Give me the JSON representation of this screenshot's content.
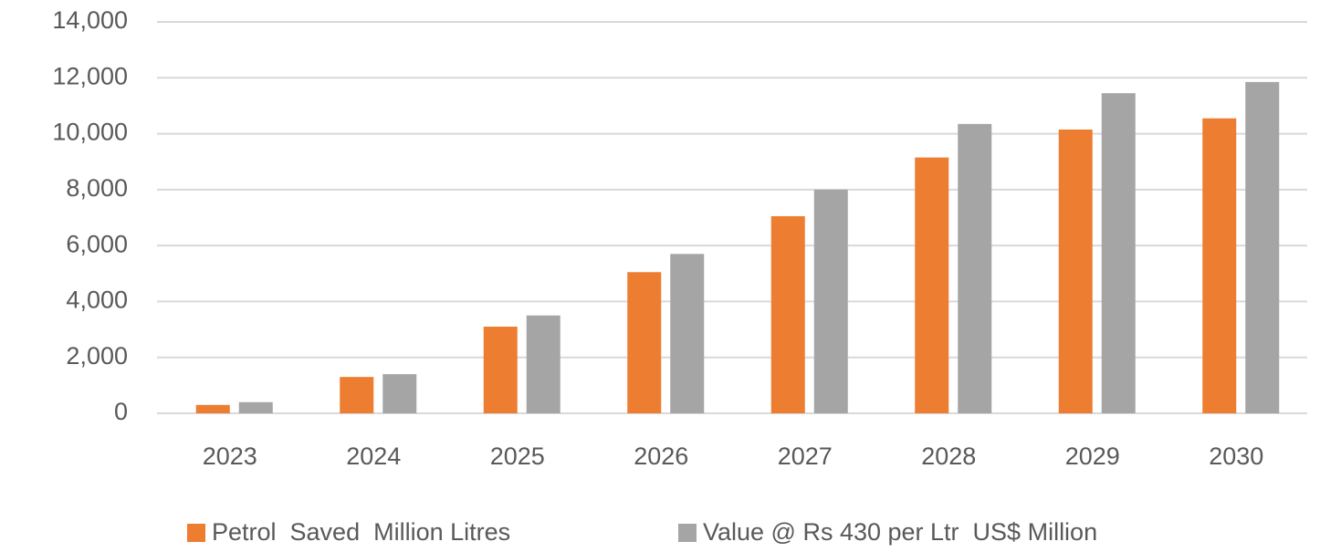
{
  "chart_data": {
    "type": "bar",
    "categories": [
      "2023",
      "2024",
      "2025",
      "2026",
      "2027",
      "2028",
      "2029",
      "2030"
    ],
    "series": [
      {
        "name": "Petrol  Saved  Million Litres",
        "color": "#ed7d31",
        "values": [
          300,
          1300,
          3100,
          5050,
          7050,
          9150,
          10150,
          10550
        ]
      },
      {
        "name": "Value @ Rs 430 per Ltr  US$ Million",
        "color": "#a5a5a5",
        "values": [
          400,
          1400,
          3500,
          5700,
          8000,
          10350,
          11450,
          11850
        ]
      }
    ],
    "ylim": [
      0,
      14000
    ],
    "yticks": [
      0,
      {
        "value": 2000,
        "label": "2,000"
      },
      {
        "value": 4000,
        "label": "4,000"
      },
      {
        "value": 6000,
        "label": "6,000"
      },
      {
        "value": 8000,
        "label": "8,000"
      },
      {
        "value": 10000,
        "label": "10,000"
      },
      {
        "value": 12000,
        "label": "12,000"
      },
      {
        "value": 14000,
        "label": "14,000"
      }
    ],
    "grid": true,
    "legend": "bottom"
  }
}
